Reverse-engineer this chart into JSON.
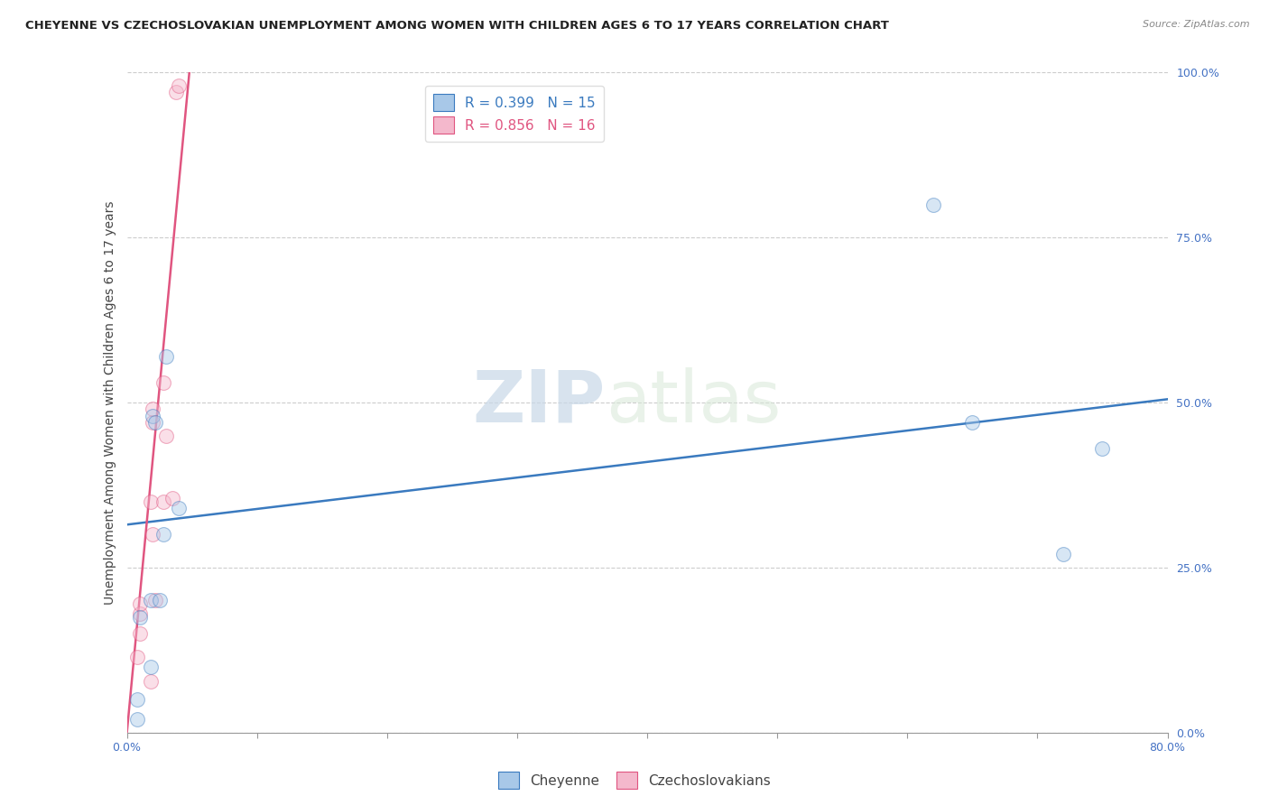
{
  "title": "CHEYENNE VS CZECHOSLOVAKIAN UNEMPLOYMENT AMONG WOMEN WITH CHILDREN AGES 6 TO 17 YEARS CORRELATION CHART",
  "source": "Source: ZipAtlas.com",
  "ylabel": "Unemployment Among Women with Children Ages 6 to 17 years",
  "xlim": [
    0.0,
    0.8
  ],
  "ylim": [
    0.0,
    1.0
  ],
  "xticks": [
    0.0,
    0.1,
    0.2,
    0.3,
    0.4,
    0.5,
    0.6,
    0.7,
    0.8
  ],
  "xticklabels": [
    "0.0%",
    "",
    "",
    "",
    "",
    "",
    "",
    "",
    "80.0%"
  ],
  "yticks": [
    0.0,
    0.25,
    0.5,
    0.75,
    1.0
  ],
  "yticklabels": [
    "0.0%",
    "25.0%",
    "50.0%",
    "75.0%",
    "100.0%"
  ],
  "cheyenne_color": "#a8c8e8",
  "czechoslovakian_color": "#f4b8cc",
  "cheyenne_R": 0.399,
  "cheyenne_N": 15,
  "czechoslovakian_R": 0.856,
  "czechoslovakian_N": 16,
  "cheyenne_line_color": "#3a7abf",
  "czechoslovakian_line_color": "#e05580",
  "watermark_zip": "ZIP",
  "watermark_atlas": "atlas",
  "cheyenne_points_x": [
    0.02,
    0.03,
    0.022,
    0.018,
    0.04,
    0.028,
    0.025,
    0.018,
    0.01,
    0.008,
    0.008,
    0.62,
    0.65,
    0.75,
    0.72
  ],
  "cheyenne_points_y": [
    0.48,
    0.57,
    0.47,
    0.2,
    0.34,
    0.3,
    0.2,
    0.1,
    0.175,
    0.05,
    0.02,
    0.8,
    0.47,
    0.43,
    0.27
  ],
  "czechoslovakian_points_x": [
    0.01,
    0.01,
    0.02,
    0.02,
    0.018,
    0.02,
    0.022,
    0.028,
    0.03,
    0.028,
    0.038,
    0.04,
    0.035,
    0.01,
    0.008,
    0.018
  ],
  "czechoslovakian_points_y": [
    0.18,
    0.195,
    0.47,
    0.49,
    0.35,
    0.3,
    0.2,
    0.53,
    0.45,
    0.35,
    0.97,
    0.98,
    0.355,
    0.15,
    0.115,
    0.078
  ],
  "cheyenne_line_x0": 0.0,
  "cheyenne_line_y0": 0.315,
  "cheyenne_line_x1": 0.8,
  "cheyenne_line_y1": 0.505,
  "czek_line_x0": 0.0,
  "czek_line_y0": 0.0,
  "czek_line_x1": 0.048,
  "czek_line_y1": 1.0,
  "background_color": "#ffffff",
  "grid_color": "#cccccc",
  "title_fontsize": 9.5,
  "label_fontsize": 10,
  "tick_fontsize": 9,
  "scatter_size": 130,
  "scatter_alpha": 0.45,
  "legend_fontsize": 11
}
